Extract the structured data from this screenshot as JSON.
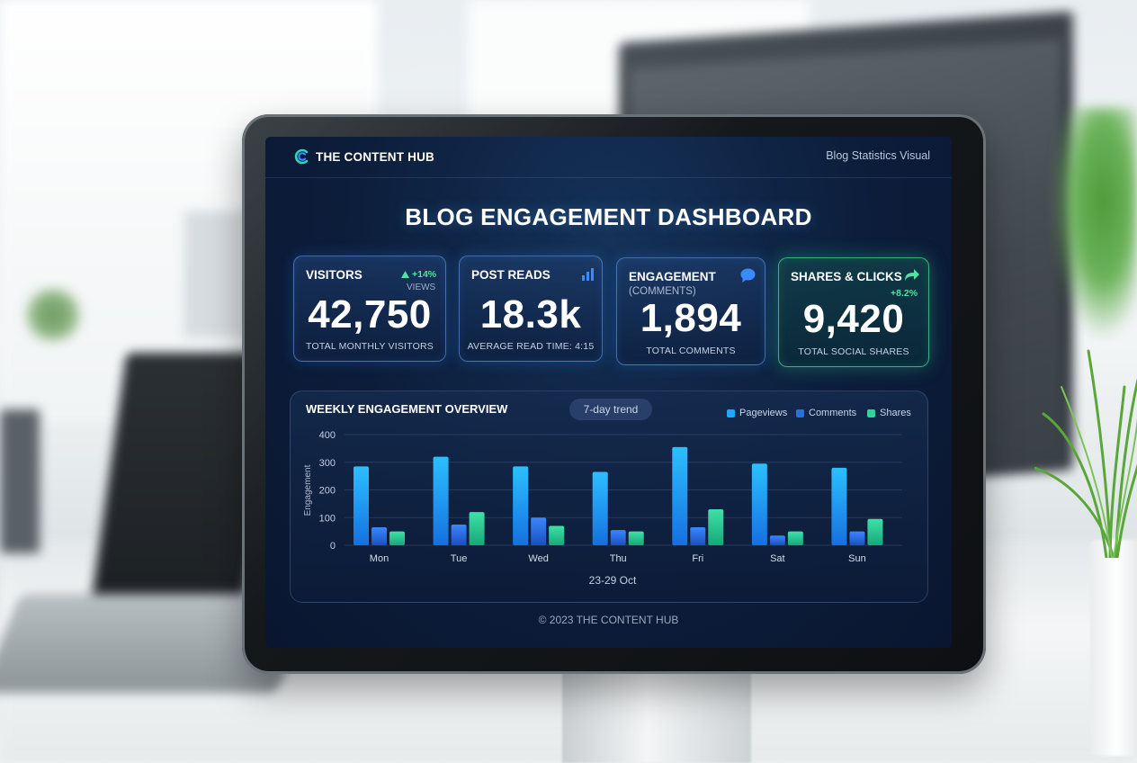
{
  "header": {
    "brand": "THE CONTENT HUB",
    "right_label": "Blog Statistics Visual"
  },
  "title": "BLOG ENGAGEMENT DASHBOARD",
  "cards": {
    "visitors": {
      "label": "VISITORS",
      "delta": "+14%",
      "delta_sub": "VIEWS",
      "value": "42,750",
      "caption": "TOTAL MONTHLY VISITORS",
      "icon": "trend-up-icon"
    },
    "post_reads": {
      "label": "POST READS",
      "value": "18.3k",
      "caption": "AVERAGE READ TIME: 4:15",
      "icon": "bar-chart-icon"
    },
    "engagement": {
      "label": "ENGAGEMENT",
      "sub": "(COMMENTS)",
      "value": "1,894",
      "caption": "TOTAL COMMENTS",
      "icon": "speech-bubble-icon"
    },
    "shares": {
      "label": "SHARES & CLICKS",
      "delta": "+8.2%",
      "value": "9,420",
      "caption": "TOTAL SOCIAL SHARES",
      "icon": "share-arrow-icon"
    }
  },
  "chart": {
    "title": "WEEKLY ENGAGEMENT OVERVIEW",
    "chip": "7-day trend",
    "range_label": "23-29 Oct"
  },
  "chart_data": {
    "type": "bar",
    "title": "WEEKLY ENGAGEMENT OVERVIEW",
    "xlabel": "23-29 Oct",
    "ylabel": "Engagement",
    "ylim": [
      0,
      400
    ],
    "yticks": [
      0,
      100,
      200,
      300,
      400
    ],
    "grid": true,
    "legend_position": "top-right",
    "categories": [
      "Mon",
      "Tue",
      "Wed",
      "Thu",
      "Fri",
      "Sat",
      "Sun"
    ],
    "series": [
      {
        "name": "Pageviews",
        "color": "#1ea8ff",
        "values": [
          285,
          320,
          285,
          265,
          355,
          295,
          280
        ]
      },
      {
        "name": "Comments",
        "color": "#2a6fe0",
        "values": [
          65,
          75,
          100,
          55,
          65,
          35,
          50
        ]
      },
      {
        "name": "Shares",
        "color": "#2fd49a",
        "values": [
          50,
          120,
          70,
          50,
          130,
          50,
          95
        ]
      }
    ]
  },
  "footer": "© 2023 THE CONTENT HUB",
  "colors": {
    "accent_blue": "#1ea8ff",
    "accent_green": "#4fe3a0",
    "screen_bg": "#0c1d3a"
  }
}
